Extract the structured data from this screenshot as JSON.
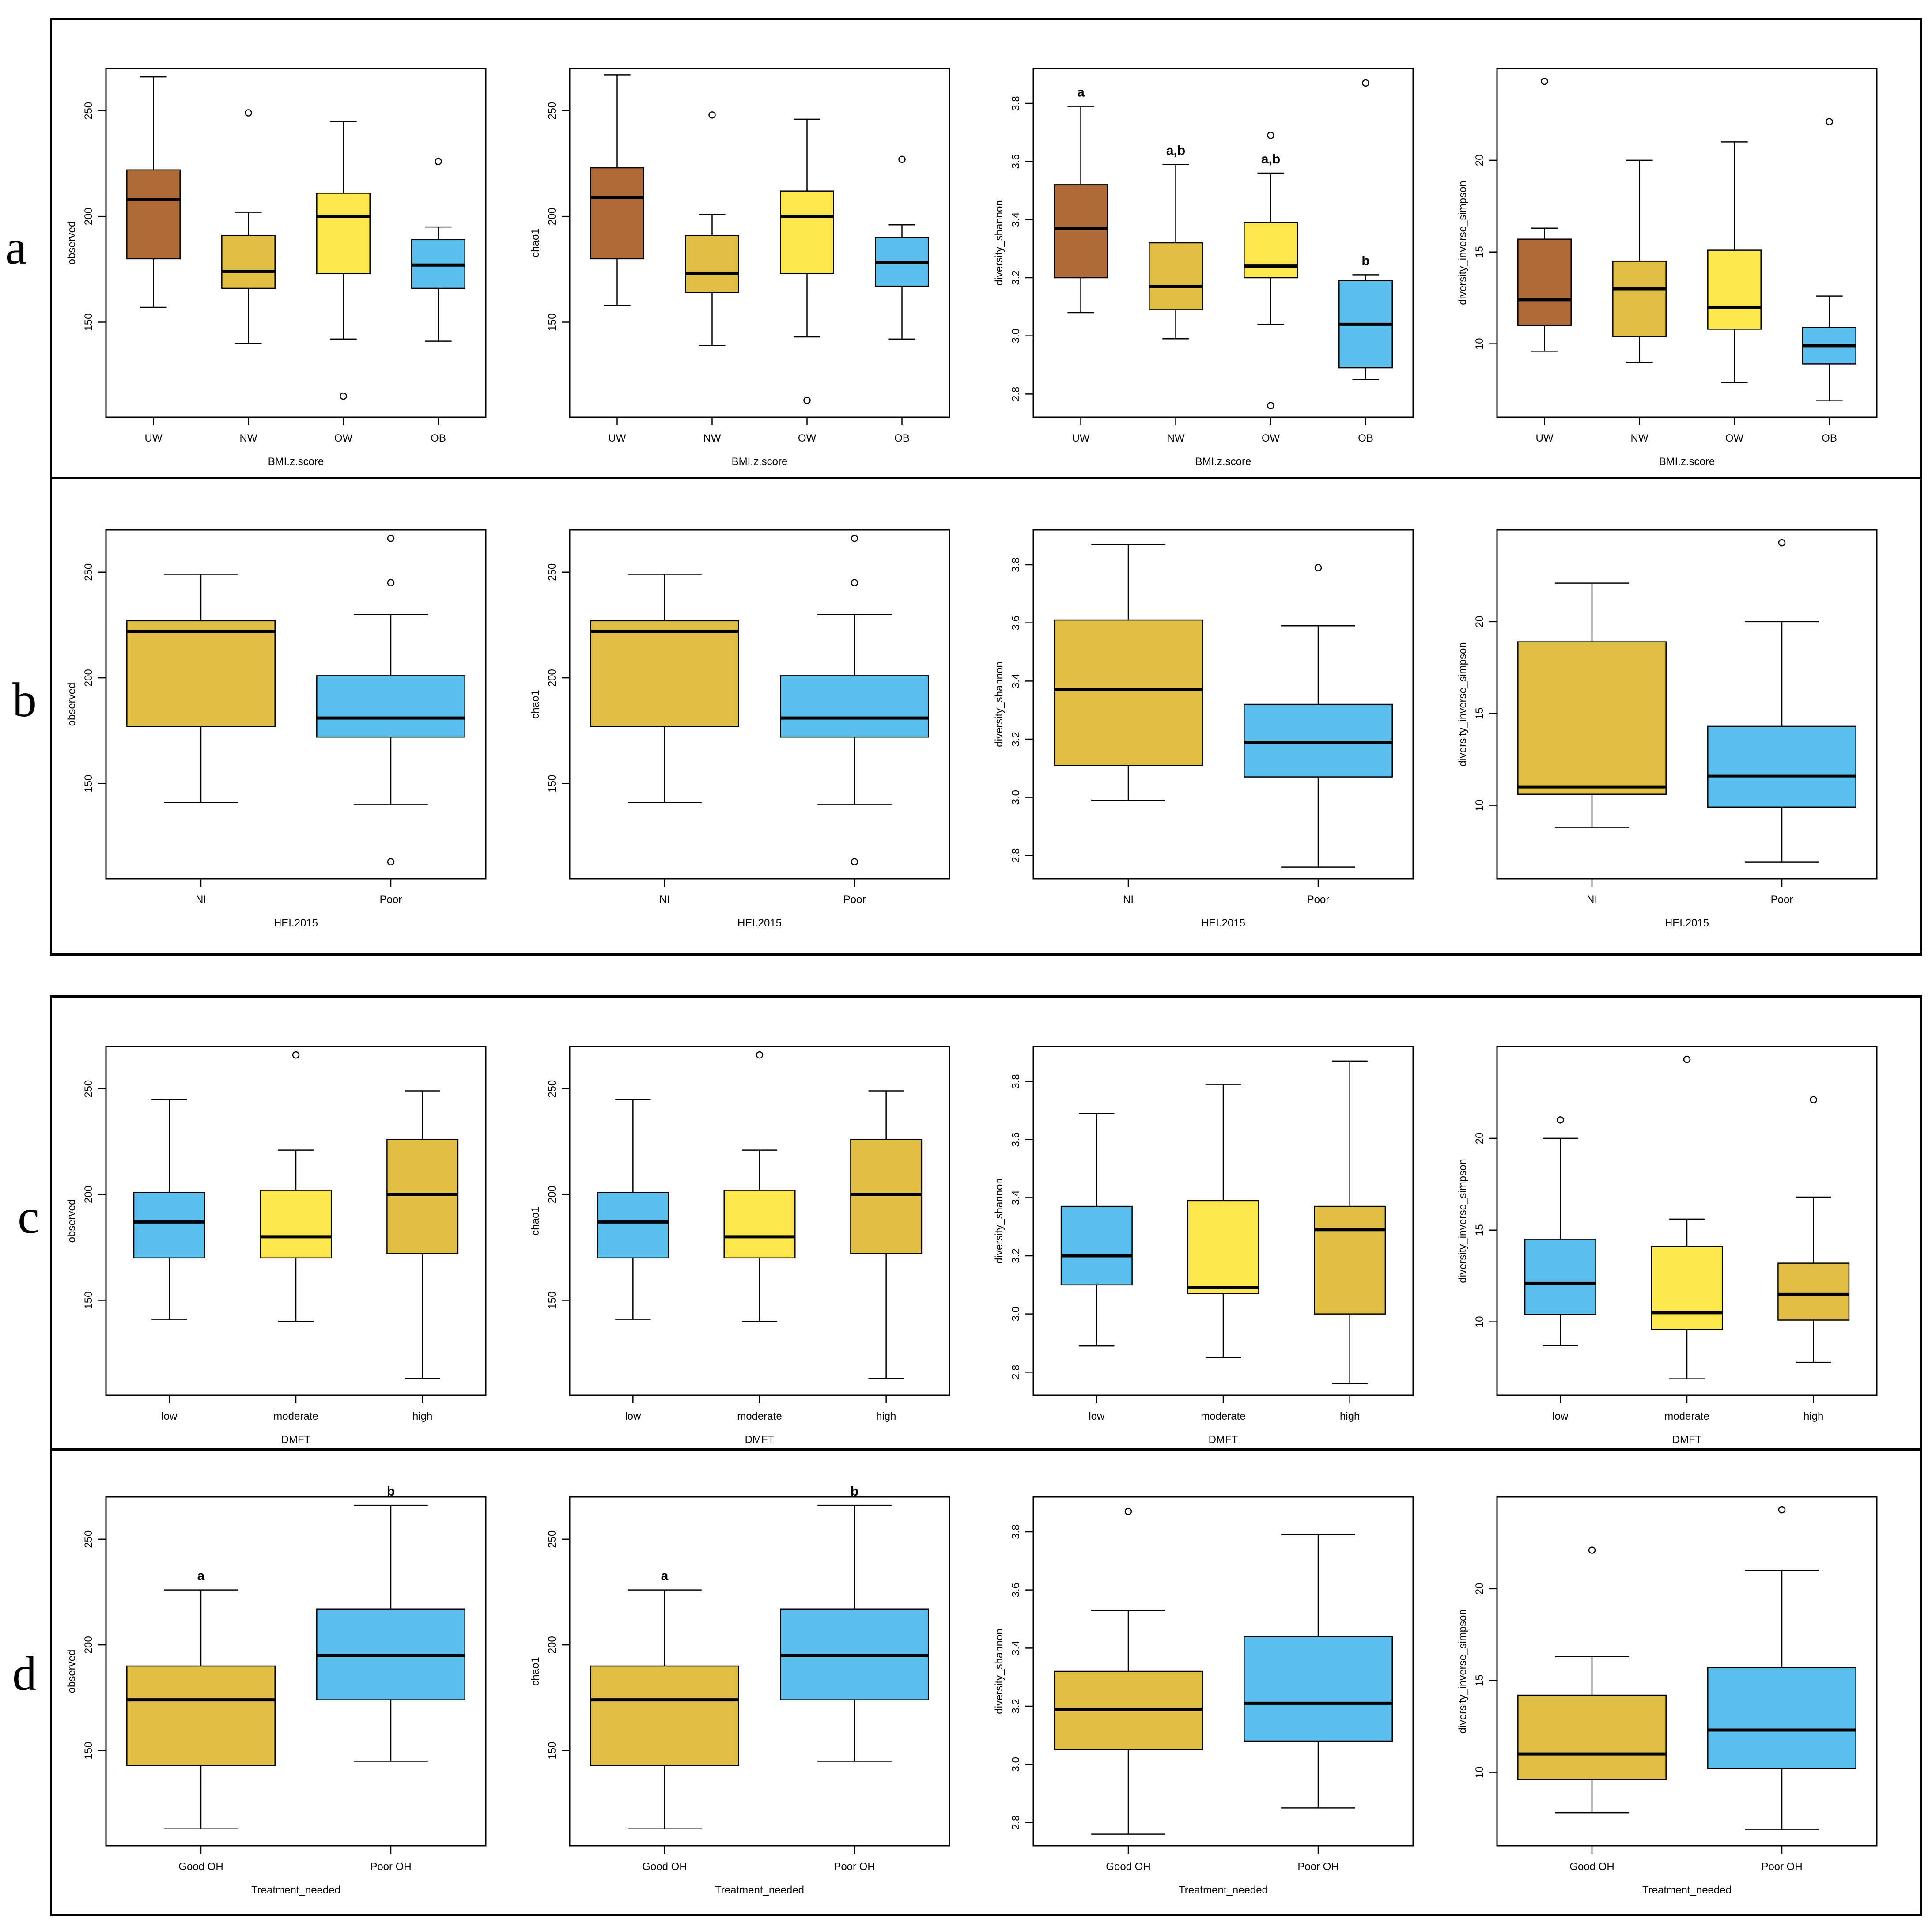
{
  "colors": {
    "UW": "#b06a35",
    "NW": "#e1bf45",
    "OW": "#fde74c",
    "OB": "#5bbfed",
    "mustard": "#e1bf45",
    "yellow": "#fde74c",
    "blue": "#5bbfed"
  },
  "panel_letters": [
    "a",
    "b",
    "c",
    "d"
  ],
  "chart_data": [
    {
      "id": "a1",
      "type": "box",
      "xlabel": "BMI.z.score",
      "ylabel": "observed",
      "ylim": [
        105,
        270
      ],
      "ticks": [
        150,
        200,
        250
      ],
      "tick_labels": [
        "150",
        "200",
        "250"
      ],
      "categories": [
        "UW",
        "NW",
        "OW",
        "OB"
      ],
      "colors": [
        "#b06a35",
        "#e1bf45",
        "#fde74c",
        "#5bbfed"
      ],
      "boxes": [
        {
          "min": 157,
          "q1": 180,
          "median": 208,
          "q3": 222,
          "max": 266,
          "outliers": []
        },
        {
          "min": 140,
          "q1": 166,
          "median": 174,
          "q3": 191,
          "max": 202,
          "outliers": [
            249
          ]
        },
        {
          "min": 142,
          "q1": 173,
          "median": 200,
          "q3": 211,
          "max": 245,
          "outliers": [
            115
          ]
        },
        {
          "min": 141,
          "q1": 166,
          "median": 177,
          "q3": 189,
          "max": 195,
          "outliers": [
            226
          ]
        }
      ],
      "letters": []
    },
    {
      "id": "a2",
      "type": "box",
      "xlabel": "BMI.z.score",
      "ylabel": "chao1",
      "ylim": [
        105,
        270
      ],
      "ticks": [
        150,
        200,
        250
      ],
      "tick_labels": [
        "150",
        "200",
        "250"
      ],
      "categories": [
        "UW",
        "NW",
        "OW",
        "OB"
      ],
      "colors": [
        "#b06a35",
        "#e1bf45",
        "#fde74c",
        "#5bbfed"
      ],
      "boxes": [
        {
          "min": 158,
          "q1": 180,
          "median": 209,
          "q3": 223,
          "max": 267,
          "outliers": []
        },
        {
          "min": 139,
          "q1": 164,
          "median": 173,
          "q3": 191,
          "max": 201,
          "outliers": [
            248
          ]
        },
        {
          "min": 143,
          "q1": 173,
          "median": 200,
          "q3": 212,
          "max": 246,
          "outliers": [
            113
          ]
        },
        {
          "min": 142,
          "q1": 167,
          "median": 178,
          "q3": 190,
          "max": 196,
          "outliers": [
            227
          ]
        }
      ],
      "letters": []
    },
    {
      "id": "a3",
      "type": "box",
      "xlabel": "BMI.z.score",
      "ylabel": "diversity_shannon",
      "ylim": [
        2.72,
        3.92
      ],
      "ticks": [
        2.8,
        3.0,
        3.2,
        3.4,
        3.6,
        3.8
      ],
      "tick_labels": [
        "2.8",
        "3.0",
        "3.2",
        "3.4",
        "3.6",
        "3.8"
      ],
      "categories": [
        "UW",
        "NW",
        "OW",
        "OB"
      ],
      "colors": [
        "#b06a35",
        "#e1bf45",
        "#fde74c",
        "#5bbfed"
      ],
      "boxes": [
        {
          "min": 3.08,
          "q1": 3.2,
          "median": 3.37,
          "q3": 3.52,
          "max": 3.79,
          "outliers": []
        },
        {
          "min": 2.99,
          "q1": 3.09,
          "median": 3.17,
          "q3": 3.32,
          "max": 3.59,
          "outliers": []
        },
        {
          "min": 3.04,
          "q1": 3.2,
          "median": 3.24,
          "q3": 3.39,
          "max": 3.56,
          "outliers": [
            3.69,
            2.76
          ]
        },
        {
          "min": 2.85,
          "q1": 2.89,
          "median": 3.04,
          "q3": 3.19,
          "max": 3.21,
          "outliers": [
            3.87
          ]
        }
      ],
      "letters": [
        "a",
        "a,b",
        "a,b",
        "b"
      ]
    },
    {
      "id": "a4",
      "type": "box",
      "xlabel": "BMI.z.score",
      "ylabel": "diversity_inverse_simpson",
      "ylim": [
        6,
        25
      ],
      "ticks": [
        10,
        15,
        20
      ],
      "tick_labels": [
        "10",
        "15",
        "20"
      ],
      "categories": [
        "UW",
        "NW",
        "OW",
        "OB"
      ],
      "colors": [
        "#b06a35",
        "#e1bf45",
        "#fde74c",
        "#5bbfed"
      ],
      "boxes": [
        {
          "min": 9.6,
          "q1": 11.0,
          "median": 12.4,
          "q3": 15.7,
          "max": 16.3,
          "outliers": [
            24.3
          ]
        },
        {
          "min": 9.0,
          "q1": 10.4,
          "median": 13.0,
          "q3": 14.5,
          "max": 20.0,
          "outliers": []
        },
        {
          "min": 7.9,
          "q1": 10.8,
          "median": 12.0,
          "q3": 15.1,
          "max": 21.0,
          "outliers": []
        },
        {
          "min": 6.9,
          "q1": 8.9,
          "median": 9.9,
          "q3": 10.9,
          "max": 12.6,
          "outliers": [
            22.1
          ]
        }
      ],
      "letters": []
    },
    {
      "id": "b1",
      "type": "box",
      "xlabel": "HEI.2015",
      "ylabel": "observed",
      "ylim": [
        105,
        270
      ],
      "ticks": [
        150,
        200,
        250
      ],
      "tick_labels": [
        "150",
        "200",
        "250"
      ],
      "categories": [
        "NI",
        "Poor"
      ],
      "colors": [
        "#e1bf45",
        "#5bbfed"
      ],
      "boxes": [
        {
          "min": 141,
          "q1": 177,
          "median": 222,
          "q3": 227,
          "max": 249,
          "outliers": []
        },
        {
          "min": 140,
          "q1": 172,
          "median": 181,
          "q3": 201,
          "max": 230,
          "outliers": [
            266,
            245,
            113
          ]
        }
      ],
      "letters": []
    },
    {
      "id": "b2",
      "type": "box",
      "xlabel": "HEI.2015",
      "ylabel": "chao1",
      "ylim": [
        105,
        270
      ],
      "ticks": [
        150,
        200,
        250
      ],
      "tick_labels": [
        "150",
        "200",
        "250"
      ],
      "categories": [
        "NI",
        "Poor"
      ],
      "colors": [
        "#e1bf45",
        "#5bbfed"
      ],
      "boxes": [
        {
          "min": 141,
          "q1": 177,
          "median": 222,
          "q3": 227,
          "max": 249,
          "outliers": []
        },
        {
          "min": 140,
          "q1": 172,
          "median": 181,
          "q3": 201,
          "max": 230,
          "outliers": [
            266,
            245,
            113
          ]
        }
      ],
      "letters": []
    },
    {
      "id": "b3",
      "type": "box",
      "xlabel": "HEI.2015",
      "ylabel": "diversity_shannon",
      "ylim": [
        2.72,
        3.92
      ],
      "ticks": [
        2.8,
        3.0,
        3.2,
        3.4,
        3.6,
        3.8
      ],
      "tick_labels": [
        "2.8",
        "3.0",
        "3.2",
        "3.4",
        "3.6",
        "3.8"
      ],
      "categories": [
        "NI",
        "Poor"
      ],
      "colors": [
        "#e1bf45",
        "#5bbfed"
      ],
      "boxes": [
        {
          "min": 2.99,
          "q1": 3.11,
          "median": 3.37,
          "q3": 3.61,
          "max": 3.87,
          "outliers": []
        },
        {
          "min": 2.76,
          "q1": 3.07,
          "median": 3.19,
          "q3": 3.32,
          "max": 3.59,
          "outliers": [
            3.79
          ]
        }
      ],
      "letters": []
    },
    {
      "id": "b4",
      "type": "box",
      "xlabel": "HEI.2015",
      "ylabel": "diversity_inverse_simpson",
      "ylim": [
        6,
        25
      ],
      "ticks": [
        10,
        15,
        20
      ],
      "tick_labels": [
        "10",
        "15",
        "20"
      ],
      "categories": [
        "NI",
        "Poor"
      ],
      "colors": [
        "#e1bf45",
        "#5bbfed"
      ],
      "boxes": [
        {
          "min": 8.8,
          "q1": 10.6,
          "median": 11.0,
          "q3": 18.9,
          "max": 22.1,
          "outliers": []
        },
        {
          "min": 6.9,
          "q1": 9.9,
          "median": 11.6,
          "q3": 14.3,
          "max": 20.0,
          "outliers": [
            24.3
          ]
        }
      ],
      "letters": []
    },
    {
      "id": "c1",
      "type": "box",
      "xlabel": "DMFT",
      "ylabel": "observed",
      "ylim": [
        105,
        270
      ],
      "ticks": [
        150,
        200,
        250
      ],
      "tick_labels": [
        "150",
        "200",
        "250"
      ],
      "categories": [
        "low",
        "moderate",
        "high"
      ],
      "colors": [
        "#5bbfed",
        "#fde74c",
        "#e1bf45"
      ],
      "boxes": [
        {
          "min": 141,
          "q1": 170,
          "median": 187,
          "q3": 201,
          "max": 245,
          "outliers": []
        },
        {
          "min": 140,
          "q1": 170,
          "median": 180,
          "q3": 202,
          "max": 221,
          "outliers": [
            266
          ]
        },
        {
          "min": 113,
          "q1": 172,
          "median": 200,
          "q3": 226,
          "max": 249,
          "outliers": []
        }
      ],
      "letters": []
    },
    {
      "id": "c2",
      "type": "box",
      "xlabel": "DMFT",
      "ylabel": "chao1",
      "ylim": [
        105,
        270
      ],
      "ticks": [
        150,
        200,
        250
      ],
      "tick_labels": [
        "150",
        "200",
        "250"
      ],
      "categories": [
        "low",
        "moderate",
        "high"
      ],
      "colors": [
        "#5bbfed",
        "#fde74c",
        "#e1bf45"
      ],
      "boxes": [
        {
          "min": 141,
          "q1": 170,
          "median": 187,
          "q3": 201,
          "max": 245,
          "outliers": []
        },
        {
          "min": 140,
          "q1": 170,
          "median": 180,
          "q3": 202,
          "max": 221,
          "outliers": [
            266
          ]
        },
        {
          "min": 113,
          "q1": 172,
          "median": 200,
          "q3": 226,
          "max": 249,
          "outliers": []
        }
      ],
      "letters": []
    },
    {
      "id": "c3",
      "type": "box",
      "xlabel": "DMFT",
      "ylabel": "diversity_shannon",
      "ylim": [
        2.72,
        3.92
      ],
      "ticks": [
        2.8,
        3.0,
        3.2,
        3.4,
        3.6,
        3.8
      ],
      "tick_labels": [
        "2.8",
        "3.0",
        "3.2",
        "3.4",
        "3.6",
        "3.8"
      ],
      "categories": [
        "low",
        "moderate",
        "high"
      ],
      "colors": [
        "#5bbfed",
        "#fde74c",
        "#e1bf45"
      ],
      "boxes": [
        {
          "min": 2.89,
          "q1": 3.1,
          "median": 3.2,
          "q3": 3.37,
          "max": 3.69,
          "outliers": []
        },
        {
          "min": 2.85,
          "q1": 3.07,
          "median": 3.09,
          "q3": 3.39,
          "max": 3.79,
          "outliers": []
        },
        {
          "min": 2.76,
          "q1": 3.0,
          "median": 3.29,
          "q3": 3.37,
          "max": 3.87,
          "outliers": []
        }
      ],
      "letters": []
    },
    {
      "id": "c4",
      "type": "box",
      "xlabel": "DMFT",
      "ylabel": "diversity_inverse_simpson",
      "ylim": [
        6,
        25
      ],
      "ticks": [
        10,
        15,
        20
      ],
      "tick_labels": [
        "10",
        "15",
        "20"
      ],
      "categories": [
        "low",
        "moderate",
        "high"
      ],
      "colors": [
        "#5bbfed",
        "#fde74c",
        "#e1bf45"
      ],
      "boxes": [
        {
          "min": 8.7,
          "q1": 10.4,
          "median": 12.1,
          "q3": 14.5,
          "max": 20.0,
          "outliers": [
            21.0
          ]
        },
        {
          "min": 6.9,
          "q1": 9.6,
          "median": 10.5,
          "q3": 14.1,
          "max": 15.6,
          "outliers": [
            24.3
          ]
        },
        {
          "min": 7.8,
          "q1": 10.1,
          "median": 11.5,
          "q3": 13.2,
          "max": 16.8,
          "outliers": [
            22.1
          ]
        }
      ],
      "letters": []
    },
    {
      "id": "d1",
      "type": "box",
      "xlabel": "Treatment_needed",
      "ylabel": "observed",
      "ylim": [
        105,
        270
      ],
      "ticks": [
        150,
        200,
        250
      ],
      "tick_labels": [
        "150",
        "200",
        "250"
      ],
      "categories": [
        "Good OH",
        "Poor OH"
      ],
      "colors": [
        "#e1bf45",
        "#5bbfed"
      ],
      "boxes": [
        {
          "min": 113,
          "q1": 143,
          "median": 174,
          "q3": 190,
          "max": 226,
          "outliers": []
        },
        {
          "min": 145,
          "q1": 174,
          "median": 195,
          "q3": 217,
          "max": 266,
          "outliers": []
        }
      ],
      "letters": [
        "a",
        "b"
      ]
    },
    {
      "id": "d2",
      "type": "box",
      "xlabel": "Treatment_needed",
      "ylabel": "chao1",
      "ylim": [
        105,
        270
      ],
      "ticks": [
        150,
        200,
        250
      ],
      "tick_labels": [
        "150",
        "200",
        "250"
      ],
      "categories": [
        "Good OH",
        "Poor OH"
      ],
      "colors": [
        "#e1bf45",
        "#5bbfed"
      ],
      "boxes": [
        {
          "min": 113,
          "q1": 143,
          "median": 174,
          "q3": 190,
          "max": 226,
          "outliers": []
        },
        {
          "min": 145,
          "q1": 174,
          "median": 195,
          "q3": 217,
          "max": 266,
          "outliers": []
        }
      ],
      "letters": [
        "a",
        "b"
      ]
    },
    {
      "id": "d3",
      "type": "box",
      "xlabel": "Treatment_needed",
      "ylabel": "diversity_shannon",
      "ylim": [
        2.72,
        3.92
      ],
      "ticks": [
        2.8,
        3.0,
        3.2,
        3.4,
        3.6,
        3.8
      ],
      "tick_labels": [
        "2.8",
        "3.0",
        "3.2",
        "3.4",
        "3.6",
        "3.8"
      ],
      "categories": [
        "Good OH",
        "Poor OH"
      ],
      "colors": [
        "#e1bf45",
        "#5bbfed"
      ],
      "boxes": [
        {
          "min": 2.76,
          "q1": 3.05,
          "median": 3.19,
          "q3": 3.32,
          "max": 3.53,
          "outliers": [
            3.87
          ]
        },
        {
          "min": 2.85,
          "q1": 3.08,
          "median": 3.21,
          "q3": 3.44,
          "max": 3.79,
          "outliers": []
        }
      ],
      "letters": []
    },
    {
      "id": "d4",
      "type": "box",
      "xlabel": "Treatment_needed",
      "ylabel": "diversity_inverse_simpson",
      "ylim": [
        6,
        25
      ],
      "ticks": [
        10,
        15,
        20
      ],
      "tick_labels": [
        "10",
        "15",
        "20"
      ],
      "categories": [
        "Good OH",
        "Poor OH"
      ],
      "colors": [
        "#e1bf45",
        "#5bbfed"
      ],
      "boxes": [
        {
          "min": 7.8,
          "q1": 9.6,
          "median": 11.0,
          "q3": 14.2,
          "max": 16.3,
          "outliers": [
            22.1
          ]
        },
        {
          "min": 6.9,
          "q1": 10.2,
          "median": 12.3,
          "q3": 15.7,
          "max": 21.0,
          "outliers": [
            24.3
          ]
        }
      ],
      "letters": []
    }
  ]
}
